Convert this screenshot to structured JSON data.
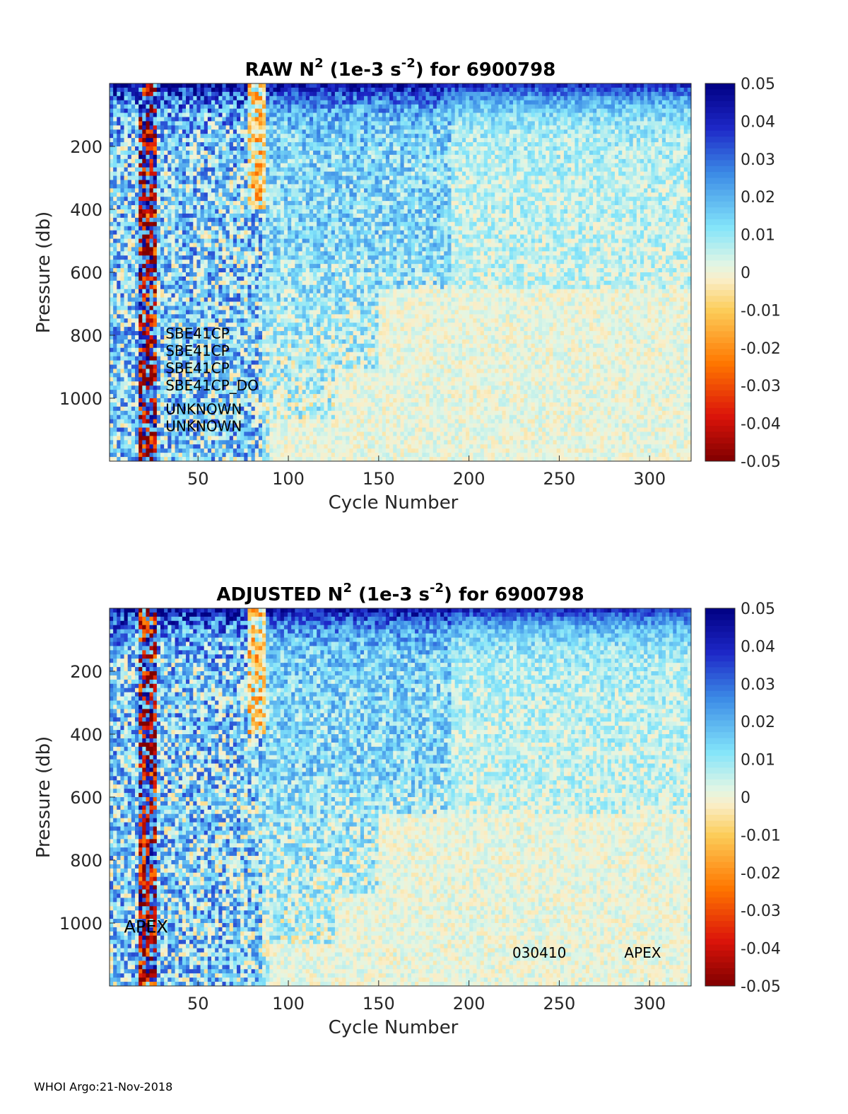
{
  "chart_data": [
    {
      "type": "heatmap",
      "title_main": "RAW N",
      "title_sup": "2",
      "title_mid": " (1e-3 s",
      "title_sup2": "-2",
      "title_end": ") for 6900798",
      "xlabel": "Cycle Number",
      "ylabel": "Pressure (db)",
      "xlim": [
        1,
        323
      ],
      "ylim": [
        1200,
        0
      ],
      "xticks": [
        50,
        100,
        150,
        200,
        250,
        300
      ],
      "yticks": [
        200,
        400,
        600,
        800,
        1000
      ],
      "colorbar": {
        "range": [
          -0.05,
          0.05
        ],
        "ticks": [
          "0.05",
          "0.04",
          "0.03",
          "0.02",
          "0.01",
          "0",
          "-0.01",
          "-0.02",
          "-0.03",
          "-0.04",
          "-0.05"
        ]
      },
      "annotations": [
        {
          "text": "SBE41CP",
          "cycle": 32,
          "pressure": 810
        },
        {
          "text": "SBE41CP",
          "cycle": 32,
          "pressure": 865
        },
        {
          "text": "SBE41CP",
          "cycle": 32,
          "pressure": 920
        },
        {
          "text": "SBE41CP_DO",
          "cycle": 32,
          "pressure": 975
        },
        {
          "text": "UNKNOWN",
          "cycle": 32,
          "pressure": 1050
        },
        {
          "text": "UNKNOWN",
          "cycle": 32,
          "pressure": 1105
        }
      ]
    },
    {
      "type": "heatmap",
      "title_main": "ADJUSTED N",
      "title_sup": "2",
      "title_mid": " (1e-3 s",
      "title_sup2": "-2",
      "title_end": ") for 6900798",
      "xlabel": "Cycle Number",
      "ylabel": "Pressure (db)",
      "xlim": [
        1,
        323
      ],
      "ylim": [
        1200,
        0
      ],
      "xticks": [
        50,
        100,
        150,
        200,
        250,
        300
      ],
      "yticks": [
        200,
        400,
        600,
        800,
        1000
      ],
      "colorbar": {
        "range": [
          -0.05,
          0.05
        ],
        "ticks": [
          "0.05",
          "0.04",
          "0.03",
          "0.02",
          "0.01",
          "0",
          "-0.01",
          "-0.02",
          "-0.03",
          "-0.04",
          "-0.05"
        ]
      },
      "annotations": [
        {
          "text": "APEX",
          "cycle": 9,
          "pressure": 1030
        },
        {
          "text": "030410",
          "cycle": 224,
          "pressure": 1110
        },
        {
          "text": "APEX",
          "cycle": 286,
          "pressure": 1110
        }
      ]
    }
  ],
  "footer": "WHOI Argo:21-Nov-2018"
}
